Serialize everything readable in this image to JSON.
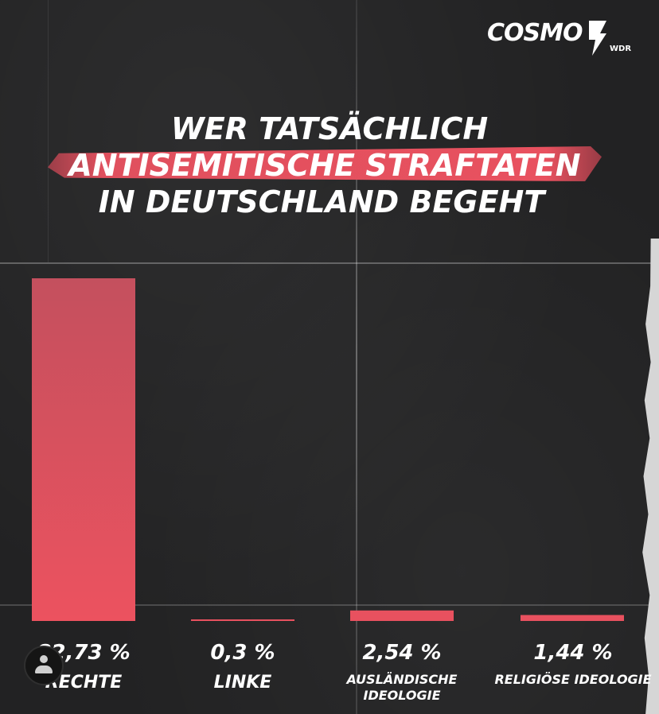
{
  "brand": {
    "name": "COSMO",
    "sub": "WDR"
  },
  "title": {
    "line1": "WER TATSÄCHLICH",
    "line2": "ANTISEMITISCHE STRAFTATEN",
    "line3": "IN DEUTSCHLAND BEGEHT"
  },
  "colors": {
    "accent": "#e8515f",
    "background": "#222223",
    "text": "#ffffff"
  },
  "chart_data": {
    "type": "bar",
    "categories": [
      "RECHTE",
      "LINKE",
      "AUSLÄNDISCHE IDEOLOGIE",
      "RELIGIÖSE IDEOLOGIE"
    ],
    "values": [
      82.73,
      0.3,
      2.54,
      1.44
    ],
    "value_labels": [
      "82,73 %",
      "0,3 %",
      "2,54 %",
      "1,44 %"
    ],
    "ylim": [
      0,
      82.73
    ],
    "grid": false,
    "legend": "none",
    "title": "WER TATSÄCHLICH ANTISEMITISCHE STRAFTATEN IN DEUTSCHLAND BEGEHT"
  },
  "avatar_icon": "user-icon"
}
